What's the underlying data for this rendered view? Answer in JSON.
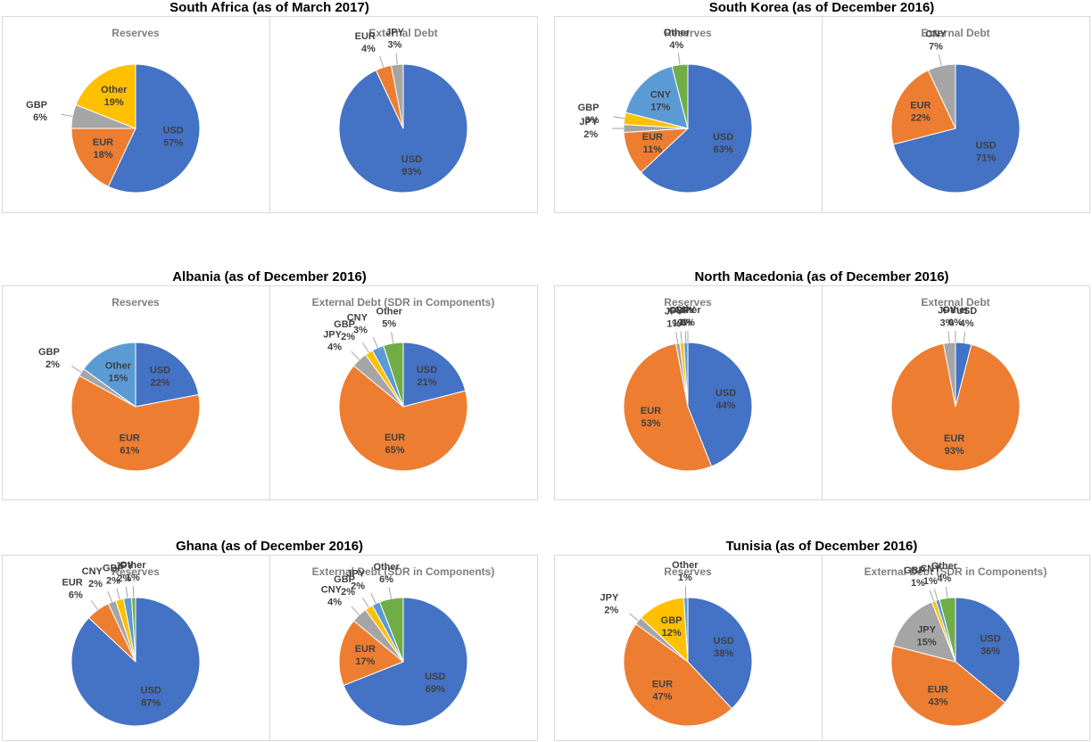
{
  "chart_data": [
    {
      "title": "South Africa (as of March 2017)",
      "charts": [
        {
          "type": "pie",
          "title": "Reserves",
          "categories": [
            "USD",
            "EUR",
            "GBP",
            "Other"
          ],
          "values": [
            57,
            18,
            6,
            19
          ],
          "value_labels": [
            "57%",
            "18%",
            "6%",
            "19%"
          ],
          "colors": [
            "#4472c4",
            "#ed7d31",
            "#a5a5a5",
            "#ffc000"
          ]
        },
        {
          "type": "pie",
          "title": "External Debt",
          "categories": [
            "USD",
            "EUR",
            "JPY"
          ],
          "values": [
            93,
            4,
            3
          ],
          "value_labels": [
            "93%",
            "4%",
            "3%"
          ],
          "colors": [
            "#4472c4",
            "#ed7d31",
            "#a5a5a5"
          ]
        }
      ]
    },
    {
      "title": "South Korea (as of December 2016)",
      "charts": [
        {
          "type": "pie",
          "title": "Reserves",
          "categories": [
            "USD",
            "EUR",
            "JPY",
            "GBP",
            "CNY",
            "Other"
          ],
          "values": [
            63,
            11,
            2,
            3,
            17,
            4
          ],
          "value_labels": [
            "63%",
            "11%",
            "2%",
            "3%",
            "17%",
            "4%"
          ],
          "colors": [
            "#4472c4",
            "#ed7d31",
            "#a5a5a5",
            "#ffc000",
            "#5b9bd5",
            "#70ad47"
          ]
        },
        {
          "type": "pie",
          "title": "External Debt",
          "categories": [
            "USD",
            "EUR",
            "CNY"
          ],
          "values": [
            71,
            22,
            7
          ],
          "value_labels": [
            "71%",
            "22%",
            "7%"
          ],
          "colors": [
            "#4472c4",
            "#ed7d31",
            "#a5a5a5"
          ]
        }
      ]
    },
    {
      "title": "Albania (as of December 2016)",
      "charts": [
        {
          "type": "pie",
          "title": "Reserves",
          "categories": [
            "USD",
            "EUR",
            "GBP",
            "Other"
          ],
          "values": [
            22,
            61,
            2,
            15
          ],
          "value_labels": [
            "22%",
            "61%",
            "2%",
            "15%"
          ],
          "colors": [
            "#4472c4",
            "#ed7d31",
            "#a5a5a5",
            "#5b9bd5"
          ]
        },
        {
          "type": "pie",
          "title": "External Debt (SDR in Components)",
          "categories": [
            "USD",
            "EUR",
            "JPY",
            "GBP",
            "CNY",
            "Other"
          ],
          "values": [
            21,
            65,
            4,
            2,
            3,
            5
          ],
          "value_labels": [
            "21%",
            "65%",
            "4%",
            "2%",
            "3%",
            "5%"
          ],
          "colors": [
            "#4472c4",
            "#ed7d31",
            "#a5a5a5",
            "#ffc000",
            "#5b9bd5",
            "#70ad47"
          ]
        }
      ]
    },
    {
      "title": "North Macedonia (as of December 2016)",
      "charts": [
        {
          "type": "pie",
          "title": "Reserves",
          "categories": [
            "USD",
            "EUR",
            "JPY",
            "GBP",
            "CNY",
            "Other"
          ],
          "values": [
            44,
            53,
            1,
            1,
            1,
            0
          ],
          "value_labels": [
            "44%",
            "53%",
            "1%",
            "1%",
            "1%",
            "0%"
          ],
          "colors": [
            "#4472c4",
            "#ed7d31",
            "#a5a5a5",
            "#ffc000",
            "#5b9bd5",
            "#70ad47"
          ]
        },
        {
          "type": "pie",
          "title": "External Debt",
          "categories": [
            "USD",
            "EUR",
            "JPY",
            "Other"
          ],
          "values": [
            4,
            93,
            3,
            0
          ],
          "value_labels": [
            "4%",
            "93%",
            "3%",
            "0%"
          ],
          "colors": [
            "#4472c4",
            "#ed7d31",
            "#a5a5a5",
            "#ffc000"
          ]
        }
      ]
    },
    {
      "title": "Ghana (as of December 2016)",
      "charts": [
        {
          "type": "pie",
          "title": "Reserves",
          "categories": [
            "USD",
            "EUR",
            "CNY",
            "GBP",
            "JPY",
            "Other"
          ],
          "values": [
            87,
            6,
            2,
            2,
            2,
            1
          ],
          "value_labels": [
            "87%",
            "6%",
            "2%",
            "2%",
            "2%",
            "1%"
          ],
          "colors": [
            "#4472c4",
            "#ed7d31",
            "#a5a5a5",
            "#ffc000",
            "#5b9bd5",
            "#70ad47"
          ]
        },
        {
          "type": "pie",
          "title": "External Debt (SDR in Components)",
          "categories": [
            "USD",
            "EUR",
            "CNY",
            "GBP",
            "JPY",
            "Other"
          ],
          "values": [
            69,
            17,
            4,
            2,
            2,
            6
          ],
          "value_labels": [
            "69%",
            "17%",
            "4%",
            "2%",
            "2%",
            "6%"
          ],
          "colors": [
            "#4472c4",
            "#ed7d31",
            "#a5a5a5",
            "#ffc000",
            "#5b9bd5",
            "#70ad47"
          ]
        }
      ]
    },
    {
      "title": "Tunisia (as of December 2016)",
      "charts": [
        {
          "type": "pie",
          "title": "Reserves",
          "categories": [
            "USD",
            "EUR",
            "JPY",
            "GBP",
            "Other"
          ],
          "values": [
            38,
            47,
            2,
            12,
            1
          ],
          "value_labels": [
            "38%",
            "47%",
            "2%",
            "12%",
            "1%"
          ],
          "colors": [
            "#4472c4",
            "#ed7d31",
            "#a5a5a5",
            "#ffc000",
            "#5b9bd5"
          ]
        },
        {
          "type": "pie",
          "title": "External Debt (SDR in Components)",
          "categories": [
            "USD",
            "EUR",
            "JPY",
            "GBP",
            "CNY",
            "Other"
          ],
          "values": [
            36,
            43,
            15,
            1,
            1,
            4
          ],
          "value_labels": [
            "36%",
            "43%",
            "15%",
            "1%",
            "1%",
            "4%"
          ],
          "colors": [
            "#4472c4",
            "#ed7d31",
            "#a5a5a5",
            "#ffc000",
            "#5b9bd5",
            "#70ad47"
          ]
        }
      ]
    }
  ]
}
